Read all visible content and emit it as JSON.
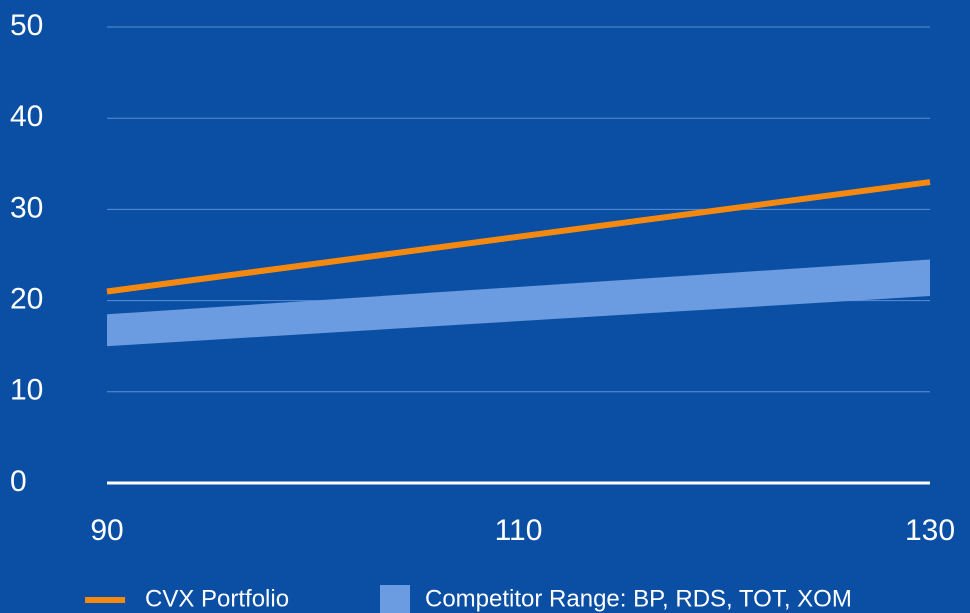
{
  "chart_data": {
    "type": "line",
    "x": [
      90,
      130
    ],
    "xlim": [
      90,
      130
    ],
    "xticks": [
      90,
      110,
      130
    ],
    "ylim": [
      0,
      50
    ],
    "yticks": [
      0,
      10,
      20,
      30,
      40,
      50
    ],
    "grid": true,
    "legend": "bottom",
    "series": [
      {
        "name": "CVX Portfolio",
        "color": "#f5890f",
        "values": [
          21,
          33
        ]
      }
    ],
    "bands": [
      {
        "name": "Competitor Range: BP, RDS, TOT, XOM",
        "color": "#6b9be0",
        "low": [
          15,
          20.5
        ],
        "high": [
          18.5,
          24.5
        ]
      }
    ]
  }
}
